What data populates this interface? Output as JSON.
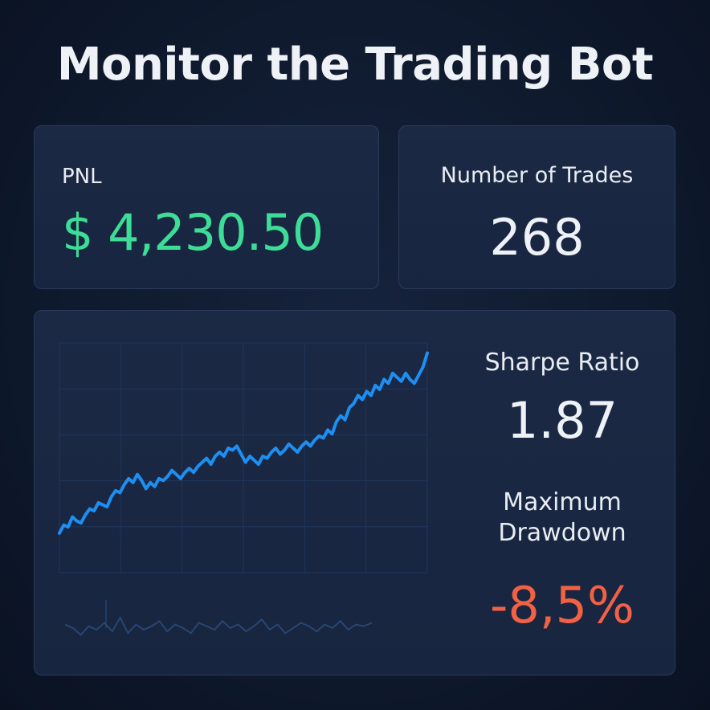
{
  "header": {
    "title": "Monitor the Trading Bot"
  },
  "pnl_card": {
    "label": "PNL",
    "value": "$ 4,230.50",
    "value_color": "#3ddc97"
  },
  "trades_card": {
    "label": "Number of Trades",
    "value": "268"
  },
  "metrics": {
    "sharpe_label": "Sharpe Ratio",
    "sharpe_value": "1.87",
    "drawdown_label": "Maximum Drawdown",
    "drawdown_value": "-8,5%",
    "drawdown_color": "#f26144"
  },
  "colors": {
    "background": "#0f1a2e",
    "card": "#1a2842",
    "line": "#1e8ff0",
    "grid": "#24406a",
    "volume": "#2a4a7a"
  },
  "chart_data": {
    "type": "line",
    "grid": true,
    "series": [
      {
        "values": [
          10,
          14,
          13,
          18,
          16,
          15,
          19,
          22,
          21,
          25,
          24,
          23,
          28,
          31,
          30,
          34,
          37,
          35,
          39,
          36,
          32,
          35,
          33,
          37,
          36,
          38,
          41,
          39,
          37,
          40,
          42,
          40,
          43,
          45,
          47,
          44,
          48,
          50,
          48,
          52,
          51,
          53,
          49,
          45,
          48,
          46,
          44,
          48,
          47,
          50,
          52,
          49,
          51,
          54,
          52,
          50,
          53,
          55,
          53,
          56,
          58,
          57,
          61,
          59,
          65,
          68,
          66,
          72,
          74,
          78,
          76,
          80,
          78,
          83,
          81,
          86,
          84,
          89,
          87,
          85,
          89,
          86,
          84,
          88,
          92,
          99
        ]
      }
    ],
    "volume": [
      10,
      8,
      4,
      9,
      7,
      11,
      6,
      14,
      5,
      10,
      7,
      9,
      12,
      6,
      10,
      8,
      5,
      11,
      9,
      7,
      12,
      8,
      10,
      6,
      9,
      13,
      7,
      10,
      5,
      8,
      11,
      9,
      6,
      10,
      8,
      12,
      7,
      10,
      9,
      11
    ]
  }
}
